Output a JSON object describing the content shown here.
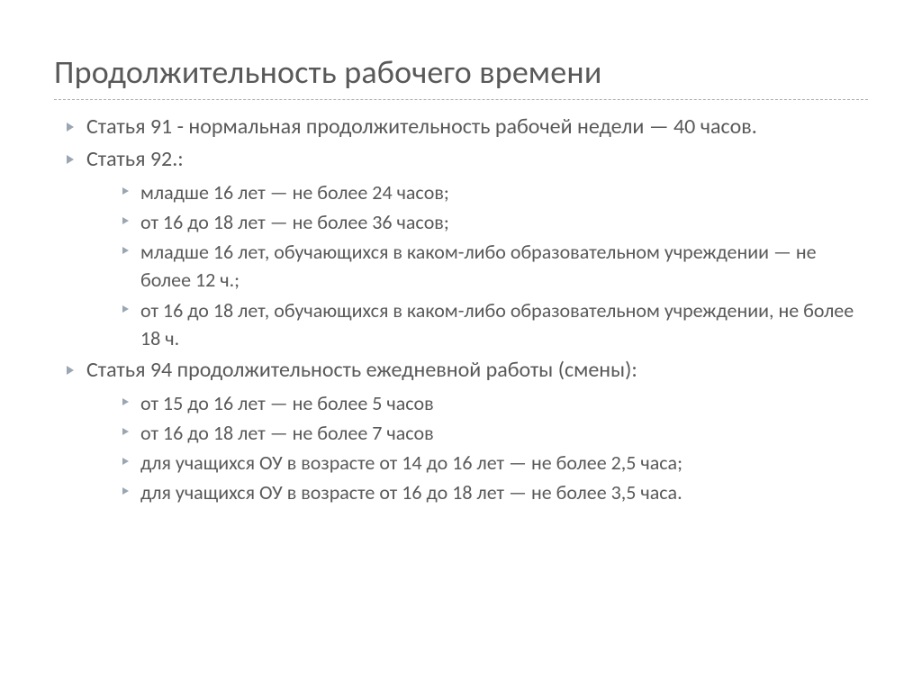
{
  "title": "Продолжительность рабочего времени",
  "bullets": [
    {
      "text": "Статья 91 - нормальная продолжительность рабочей недели — 40 часов.",
      "children": []
    },
    {
      "text": "Статья 92.:",
      "children": [
        "младше 16 лет — не более 24 часов;",
        "от 16 до 18 лет — не более 36 часов;",
        "младше 16 лет, обучающихся в каком-либо образовательном учреждении — не более 12 ч.;",
        "от 16 до 18 лет, обучающихся в каком-либо образовательном учреждении, не более 18 ч."
      ]
    },
    {
      "text": "Статья 94 продолжительность ежедневной работы (смены):",
      "children": [
        "от 15 до 16 лет — не более 5 часов",
        "от 16 до 18 лет — не более 7 часов",
        "для учащихся ОУ в возрасте от 14 до 16 лет — не более 2,5 часа;",
        "для учащихся ОУ в возрасте от 16 до 18 лет — не более 3,5 часа."
      ]
    }
  ],
  "style": {
    "background_color": "#ffffff",
    "text_color": "#595959",
    "bullet_arrow_color": "#9aa6b2",
    "title_underline_color": "#b0b0b0",
    "title_fontsize": 36,
    "level1_fontsize": 24,
    "level2_fontsize": 22,
    "font_family": "Segoe UI / Calibri"
  }
}
